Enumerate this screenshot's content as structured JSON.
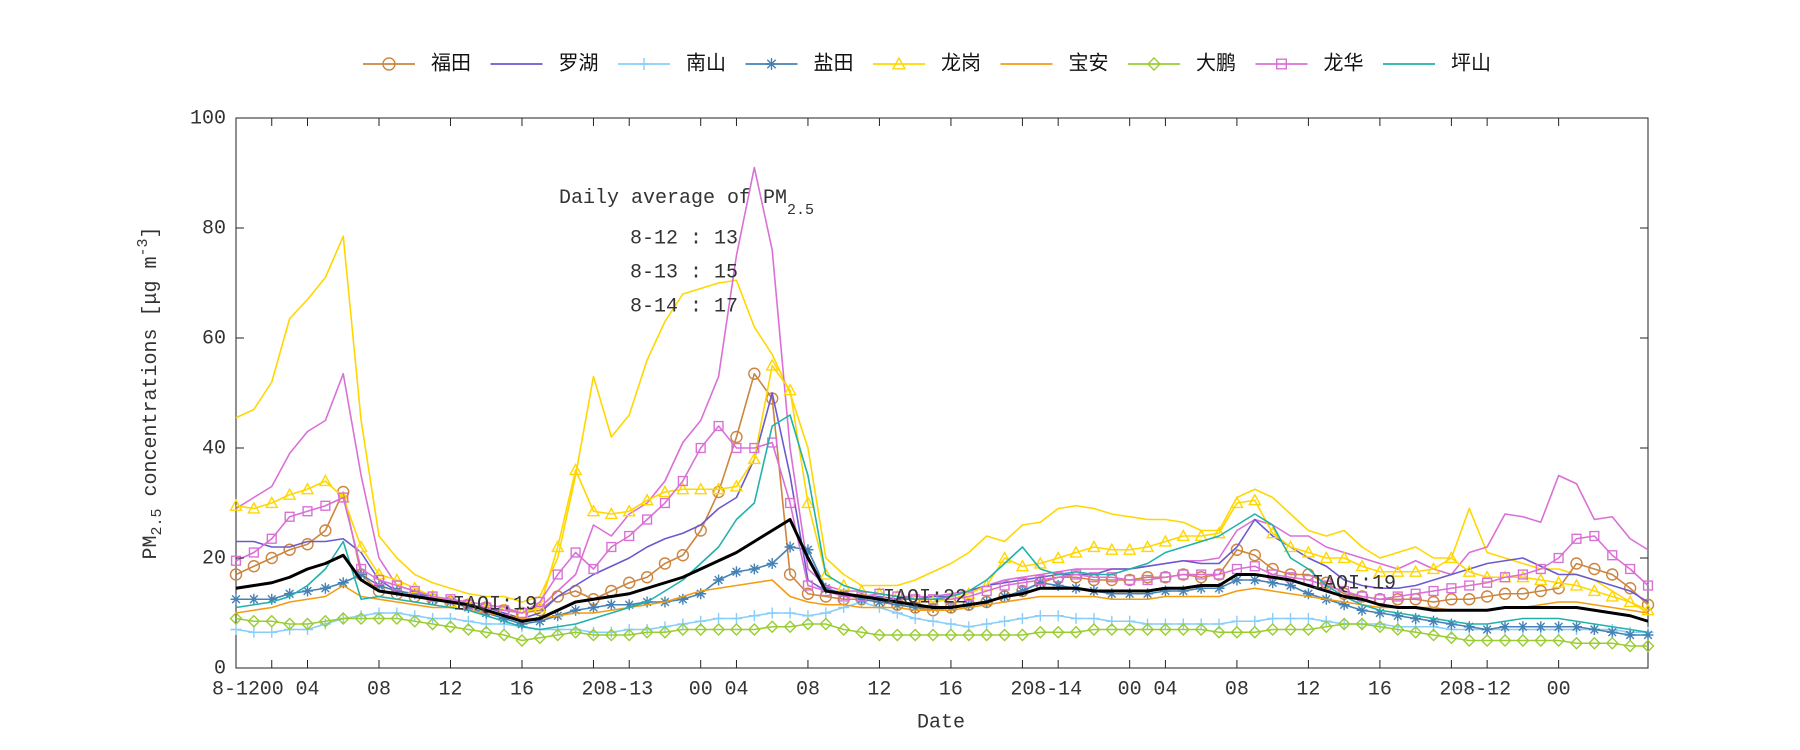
{
  "chart_data": {
    "type": "line",
    "xlabel": "Date",
    "ylabel_parts": [
      "PM",
      "2.5",
      " concentrations [μg m",
      "-3",
      "]"
    ],
    "annotation_title_parts": [
      "Daily average of PM",
      "2.5"
    ],
    "annotations": [
      "8-12 : 13",
      "8-13 : 15",
      "8-14 : 17"
    ],
    "iaqi_labels": [
      "IAQI:19",
      "IAQI:22",
      "IAQI:19"
    ],
    "xlim": [
      0,
      79
    ],
    "ylim": [
      0,
      100
    ],
    "yticks": [
      0,
      20,
      40,
      60,
      80,
      100
    ],
    "xticks": [
      {
        "value": 0,
        "label": "8-12"
      },
      {
        "value": 2,
        "label": "00"
      },
      {
        "value": 4,
        "label": "04"
      },
      {
        "value": 8,
        "label": "08"
      },
      {
        "value": 12,
        "label": "12"
      },
      {
        "value": 16,
        "label": "16"
      },
      {
        "value": 20,
        "label": "20"
      },
      {
        "value": 22,
        "label": "8-13"
      },
      {
        "value": 26,
        "label": "00"
      },
      {
        "value": 28,
        "label": "04"
      },
      {
        "value": 32,
        "label": "08"
      },
      {
        "value": 36,
        "label": "12"
      },
      {
        "value": 40,
        "label": "16"
      },
      {
        "value": 44,
        "label": "20"
      },
      {
        "value": 46,
        "label": "8-14"
      },
      {
        "value": 50,
        "label": "00"
      },
      {
        "value": 52,
        "label": "04"
      },
      {
        "value": 56,
        "label": "08"
      },
      {
        "value": 60,
        "label": "12"
      },
      {
        "value": 64,
        "label": "16"
      },
      {
        "value": 68,
        "label": "20"
      },
      {
        "value": 70,
        "label": "8-12"
      },
      {
        "value": 74,
        "label": "00"
      }
    ],
    "legend": "top",
    "x": [
      0,
      1,
      2,
      3,
      4,
      5,
      6,
      7,
      8,
      9,
      10,
      11,
      12,
      13,
      14,
      15,
      16,
      17,
      18,
      19,
      20,
      21,
      22,
      23,
      24,
      25,
      26,
      27,
      28,
      29,
      30,
      31,
      32,
      33,
      34,
      35,
      36,
      37,
      38,
      39,
      40,
      41,
      42,
      43,
      44,
      45,
      46,
      47,
      48,
      49,
      50,
      51,
      52,
      53,
      54,
      55,
      56,
      57,
      58,
      59,
      60,
      61,
      62,
      63,
      64,
      65,
      66,
      67,
      68,
      69,
      70,
      71,
      72,
      73,
      74,
      75,
      76,
      77,
      78,
      79
    ],
    "series": [
      {
        "color": "#ffd700",
        "values": [
          45.5,
          47,
          52,
          63.5,
          67,
          71,
          78.5,
          45,
          24,
          20,
          17,
          15.5,
          14.5,
          13.5,
          13,
          13,
          12,
          13,
          20,
          35,
          53,
          42,
          46,
          56,
          63,
          68,
          69,
          70,
          70.5,
          62,
          57,
          50,
          40,
          20,
          17,
          15,
          15,
          15,
          16,
          17.5,
          19,
          21,
          24,
          23,
          26,
          26.5,
          29,
          29.5,
          29,
          28,
          27.5,
          27,
          27,
          26.5,
          25,
          25,
          31,
          32.5,
          31,
          28,
          25,
          24,
          25,
          22,
          20,
          21,
          22,
          20,
          20,
          29,
          21,
          20,
          19,
          18,
          18,
          17,
          16,
          14,
          12,
          10
        ]
      },
      {
        "color": "#da70d6",
        "values": [
          29,
          31,
          33,
          39,
          43,
          45,
          53.5,
          35,
          20,
          15,
          14,
          13,
          12.5,
          12,
          11.5,
          11,
          10,
          11,
          14,
          17,
          26,
          24,
          28,
          30,
          34,
          41,
          45,
          53,
          75,
          91,
          76,
          40,
          18,
          15,
          14,
          14,
          13.5,
          13,
          13,
          13,
          13.5,
          14,
          15,
          16,
          16.5,
          17,
          17.5,
          18,
          18,
          18,
          18,
          18.5,
          19,
          19.5,
          19.5,
          20,
          25,
          27,
          26,
          24,
          24,
          22,
          21,
          20,
          19,
          18,
          19.5,
          18,
          17,
          21,
          22,
          28,
          27.5,
          26.5,
          35,
          33.5,
          27,
          27.5,
          23.5,
          21.5
        ]
      },
      {
        "name": "福田",
        "color": "#cd853f",
        "marker": "o",
        "values": [
          17,
          18.5,
          20,
          21.5,
          22.5,
          25,
          32,
          17,
          14,
          13.5,
          13,
          12.5,
          12,
          11.5,
          11,
          10.5,
          10,
          10.5,
          13,
          14,
          12.5,
          14,
          15.5,
          16.5,
          19,
          20.5,
          25,
          32,
          42,
          53.5,
          49,
          17,
          13.5,
          13,
          12.5,
          12.5,
          12,
          11.5,
          11,
          10.5,
          11,
          11.5,
          12,
          13,
          14,
          15.5,
          16.5,
          16.5,
          16,
          16,
          16,
          16.5,
          16.5,
          17,
          16.5,
          17,
          21.5,
          20.5,
          18,
          17,
          17,
          15.5,
          13.5,
          13,
          12.5,
          12.5,
          12.5,
          12,
          12.5,
          12.5,
          13,
          13.5,
          13.5,
          14,
          14.5,
          19,
          18,
          17,
          14.5,
          11.5
        ]
      },
      {
        "name": "罗湖",
        "color": "#6a5acd",
        "values": [
          23,
          23,
          22,
          22,
          23,
          23,
          23.5,
          21,
          16,
          14,
          13.5,
          13,
          12,
          11.5,
          11,
          10,
          9,
          10,
          13,
          15,
          17,
          18.5,
          20,
          22,
          23.5,
          24.5,
          26,
          29,
          31,
          38,
          50,
          35,
          16,
          14,
          13.5,
          13,
          13,
          12.5,
          12.5,
          13,
          13,
          14,
          15,
          15.5,
          16,
          16.5,
          17,
          17,
          17,
          18,
          18,
          18.5,
          19,
          19.5,
          19,
          19,
          22,
          27,
          24,
          22,
          20,
          18.5,
          16,
          15,
          14.5,
          14.5,
          15,
          16,
          17,
          18,
          19,
          19.5,
          20,
          18.5,
          17,
          17,
          16,
          15,
          14,
          12
        ]
      },
      {
        "name": "南山",
        "color": "#87cefa",
        "marker": "+",
        "values": [
          7,
          6.5,
          6.5,
          7,
          7,
          8,
          9,
          9.5,
          10,
          10,
          9.5,
          9,
          9,
          8.5,
          8,
          8,
          7.5,
          7,
          7,
          7,
          6.5,
          6.5,
          7,
          7,
          7.5,
          8,
          8.5,
          9,
          9,
          9.5,
          10,
          10,
          9.5,
          10,
          11,
          12,
          11,
          10,
          9,
          8.5,
          8,
          7.5,
          8,
          8.5,
          9,
          9.5,
          9.5,
          9,
          9,
          8.5,
          8.5,
          8,
          8,
          8,
          8,
          8,
          8.5,
          8.5,
          9,
          9,
          9,
          8.5,
          8,
          8,
          8,
          7.5,
          7.5,
          7.5,
          7,
          7,
          7,
          7,
          7,
          7,
          7,
          7,
          7,
          7,
          6.5,
          6.5
        ]
      },
      {
        "name": "盐田",
        "color": "#4682b4",
        "marker": "*",
        "values": [
          12.5,
          12.5,
          12.5,
          13.5,
          14,
          14.5,
          15.5,
          17,
          15,
          14,
          13.5,
          12.5,
          12,
          11,
          10,
          9,
          8,
          8.5,
          9.5,
          10.5,
          11,
          11.5,
          11.5,
          12,
          12,
          12.5,
          13.5,
          16,
          17.5,
          18,
          19,
          22,
          21.5,
          14.5,
          13.5,
          12.5,
          12,
          11.5,
          11,
          11,
          11,
          11.5,
          12,
          13,
          14,
          15.5,
          15,
          14.5,
          14,
          13.5,
          13.5,
          13.5,
          14,
          14,
          14.5,
          14.5,
          16,
          16,
          15.5,
          15,
          13.5,
          12.5,
          11.5,
          10.5,
          10,
          9.5,
          9,
          8.5,
          8,
          7.5,
          7,
          7.5,
          7.5,
          7.5,
          7.5,
          7.5,
          7,
          6.5,
          6,
          6
        ]
      },
      {
        "name": "龙岗",
        "color": "#ffd700",
        "marker": "^",
        "values": [
          29.5,
          29,
          30,
          31.5,
          32.5,
          34,
          31,
          22,
          17,
          16,
          14.5,
          13,
          12,
          11.5,
          11,
          10.5,
          10,
          11,
          22,
          36,
          28.5,
          28,
          28.5,
          30.5,
          32,
          32.5,
          32.5,
          32.5,
          33,
          38,
          55,
          50.5,
          30,
          17,
          15,
          14,
          13.5,
          13,
          12.5,
          12,
          12.5,
          13.5,
          15,
          20,
          18.5,
          19,
          20,
          21,
          22,
          21.5,
          21.5,
          22,
          23,
          24,
          24,
          24.5,
          30,
          30.5,
          24.5,
          22,
          21,
          20,
          20,
          18.5,
          17.5,
          17.5,
          17.5,
          18,
          20,
          17.5,
          16.5,
          16.5,
          16.5,
          16,
          15.5,
          15,
          14,
          13,
          12,
          10.5
        ]
      },
      {
        "name": "宝安",
        "color": "#f39c12",
        "values": [
          10,
          10.5,
          11,
          12,
          12.5,
          13,
          15,
          13,
          12.5,
          12,
          11.5,
          11,
          11,
          10.5,
          10,
          9.5,
          9,
          9,
          9.5,
          10,
          10,
          10.5,
          11,
          11.5,
          12,
          13,
          14,
          14.5,
          15,
          15.5,
          16,
          13,
          12,
          11.5,
          11.5,
          11,
          11,
          11,
          10.5,
          10.5,
          10.5,
          11,
          11.5,
          12,
          12.5,
          13,
          13,
          13,
          13,
          12.5,
          12.5,
          12.5,
          13,
          13,
          13,
          13,
          14,
          14.5,
          14,
          13.5,
          13,
          12.5,
          12,
          11.5,
          11,
          11,
          11,
          11,
          10.5,
          10.5,
          10.5,
          11,
          11,
          11.5,
          12,
          12,
          11.5,
          11,
          10.5,
          10
        ]
      },
      {
        "name": "大鹏",
        "color": "#9acd32",
        "marker": "d",
        "values": [
          9,
          8.5,
          8.5,
          8,
          8,
          8.5,
          9,
          9,
          9,
          9,
          8.5,
          8,
          7.5,
          7,
          6.5,
          6,
          5,
          5.5,
          6,
          6.5,
          6,
          6,
          6,
          6.5,
          6.5,
          7,
          7,
          7,
          7,
          7,
          7.5,
          7.5,
          8,
          8,
          7,
          6.5,
          6,
          6,
          6,
          6,
          6,
          6,
          6,
          6,
          6,
          6.5,
          6.5,
          6.5,
          7,
          7,
          7,
          7,
          7,
          7,
          7,
          6.5,
          6.5,
          6.5,
          7,
          7,
          7,
          7.5,
          8,
          8,
          7.5,
          7,
          6.5,
          6,
          5.5,
          5,
          5,
          5,
          5,
          5,
          5,
          4.5,
          4.5,
          4.5,
          4,
          4
        ]
      },
      {
        "name": "龙华",
        "color": "#da70d6",
        "marker": "s",
        "values": [
          19.5,
          21,
          23.5,
          27.5,
          28.5,
          29.5,
          31,
          18,
          16,
          15,
          14,
          13,
          12.5,
          11.5,
          11,
          10.5,
          10,
          12,
          17,
          21,
          18,
          22,
          24,
          27,
          30,
          34,
          40,
          44,
          40,
          40,
          41,
          30,
          15,
          14,
          13,
          13,
          13.5,
          13,
          12.5,
          12.5,
          12.5,
          13,
          14,
          15,
          15.5,
          16,
          16.5,
          17,
          16.5,
          16.5,
          16,
          16,
          16.5,
          17,
          17,
          17,
          18,
          18.5,
          17,
          16.5,
          16,
          15,
          14,
          13,
          12.5,
          13,
          13.5,
          14,
          14.5,
          15,
          15.5,
          16.5,
          17,
          18,
          20,
          23.5,
          24,
          20.5,
          18,
          15
        ]
      },
      {
        "name": "坪山",
        "color": "#20b2aa",
        "values": [
          11,
          11.5,
          12,
          13,
          15,
          18,
          23,
          12.5,
          13,
          12.5,
          12,
          11.5,
          11,
          10.5,
          9.5,
          8.5,
          7.5,
          7,
          7.5,
          8,
          9,
          10,
          11,
          12,
          14,
          16,
          19,
          22,
          27,
          30,
          44,
          46,
          35,
          17,
          15,
          14,
          13.5,
          13,
          12.5,
          12.5,
          13,
          14,
          16,
          19,
          22,
          18,
          17,
          17.5,
          17,
          17,
          18,
          19,
          21,
          22,
          23,
          24,
          26,
          28,
          26,
          20,
          18,
          15,
          13,
          11.5,
          10.5,
          10,
          9.5,
          9,
          8.5,
          8,
          8,
          8.5,
          9,
          9,
          9,
          8.5,
          8,
          7.5,
          7,
          6.5
        ]
      },
      {
        "color": "#000000",
        "width": 3,
        "values": [
          14.5,
          15,
          15.5,
          16.5,
          18,
          19,
          20.5,
          16,
          14,
          13.5,
          13,
          12.5,
          12,
          11.5,
          10.5,
          9.5,
          8.5,
          9,
          10.5,
          12,
          12.5,
          13,
          13.5,
          14.5,
          15.5,
          16.5,
          18,
          19.5,
          21,
          23,
          25,
          27,
          20,
          14,
          13.5,
          13,
          12.5,
          12,
          11.5,
          11,
          11,
          11.5,
          12,
          13,
          13.5,
          14.5,
          14.5,
          14.5,
          14,
          14,
          14,
          14,
          14.5,
          14.5,
          15,
          15,
          17,
          17,
          16.5,
          16,
          15,
          14,
          13,
          12.5,
          11.5,
          11,
          11,
          10.5,
          10.5,
          10.5,
          10.5,
          11,
          11,
          11,
          11,
          11,
          10.5,
          10,
          9.5,
          8.5
        ]
      }
    ]
  }
}
